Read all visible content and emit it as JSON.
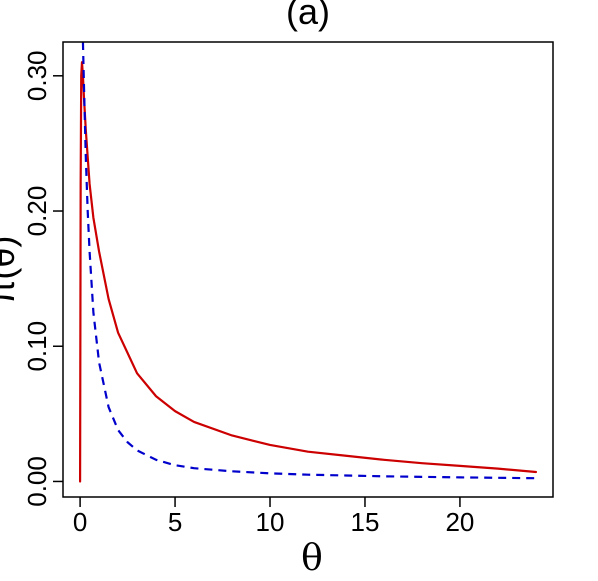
{
  "chart_data": {
    "type": "line",
    "title": "(a)",
    "xlabel": "θ",
    "ylabel": "π(θ)",
    "xlim": [
      -0.9,
      24.9
    ],
    "ylim": [
      -0.0115,
      0.325
    ],
    "xticks": [
      0,
      5,
      10,
      15,
      20
    ],
    "xtick_labels": [
      "0",
      "5",
      "10",
      "15",
      "20"
    ],
    "yticks": [
      0.0,
      0.1,
      0.2,
      0.3
    ],
    "ytick_labels": [
      "0.00",
      "0.10",
      "0.20",
      "0.30"
    ],
    "grid": false,
    "legend": "none",
    "series": [
      {
        "color": "#cc0000",
        "style": "solid",
        "x": [
          0.0,
          0.03,
          0.06,
          0.1,
          0.15,
          0.2,
          0.3,
          0.4,
          0.5,
          0.7,
          1,
          1.5,
          2,
          3,
          4,
          5,
          6,
          8,
          10,
          12,
          14,
          16,
          18,
          20,
          22,
          24
        ],
        "y": [
          0.0,
          0.22,
          0.3,
          0.31,
          0.3,
          0.285,
          0.26,
          0.24,
          0.22,
          0.195,
          0.17,
          0.135,
          0.11,
          0.08,
          0.063,
          0.052,
          0.044,
          0.034,
          0.027,
          0.022,
          0.019,
          0.016,
          0.0135,
          0.0115,
          0.0095,
          0.007
        ]
      },
      {
        "color": "#0000cc",
        "style": "dashed",
        "x": [
          0.15,
          0.2,
          0.3,
          0.4,
          0.5,
          0.7,
          1,
          1.5,
          2,
          2.5,
          3,
          4,
          5,
          6,
          8,
          10,
          12,
          14,
          16,
          18,
          20,
          22,
          24
        ],
        "y": [
          0.325,
          0.295,
          0.24,
          0.2,
          0.17,
          0.125,
          0.088,
          0.055,
          0.038,
          0.029,
          0.023,
          0.016,
          0.012,
          0.0098,
          0.0075,
          0.006,
          0.005,
          0.0044,
          0.0038,
          0.0034,
          0.003,
          0.0027,
          0.0024
        ]
      }
    ]
  }
}
